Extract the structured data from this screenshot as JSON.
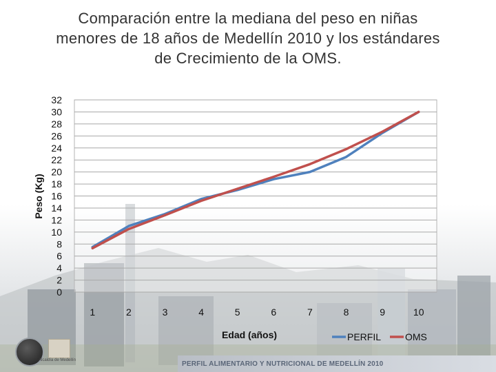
{
  "title_lines": [
    "Comparación entre la mediana del peso en niñas",
    "menores de 18 años de Medellín 2010 y los estándares",
    "de Crecimiento de la OMS."
  ],
  "chart_data": {
    "type": "line",
    "xlabel": "Edad (años)",
    "ylabel": "Peso (Kg)",
    "x": [
      1,
      2,
      3,
      4,
      5,
      6,
      7,
      8,
      9,
      10
    ],
    "ylim": [
      0,
      32
    ],
    "yticks": [
      0,
      2,
      4,
      6,
      8,
      10,
      12,
      14,
      16,
      18,
      20,
      22,
      24,
      26,
      28,
      30,
      32
    ],
    "grid": true,
    "legend_position": "bottom-right",
    "series": [
      {
        "name": "PERFIL",
        "color": "#4f81bd",
        "values": [
          7.5,
          11.0,
          13.0,
          15.5,
          17.0,
          18.8,
          20.0,
          22.5,
          26.5,
          30.0
        ]
      },
      {
        "name": "OMS",
        "color": "#c0504d",
        "values": [
          7.3,
          10.5,
          12.8,
          15.2,
          17.2,
          19.2,
          21.3,
          23.8,
          26.7,
          30.0
        ]
      }
    ]
  },
  "footer": {
    "text": "PERFIL ALIMENTARIO Y NUTRICIONAL DE MEDELLÍN 2010",
    "logo_caption": "Alcaldía de Medellín"
  }
}
